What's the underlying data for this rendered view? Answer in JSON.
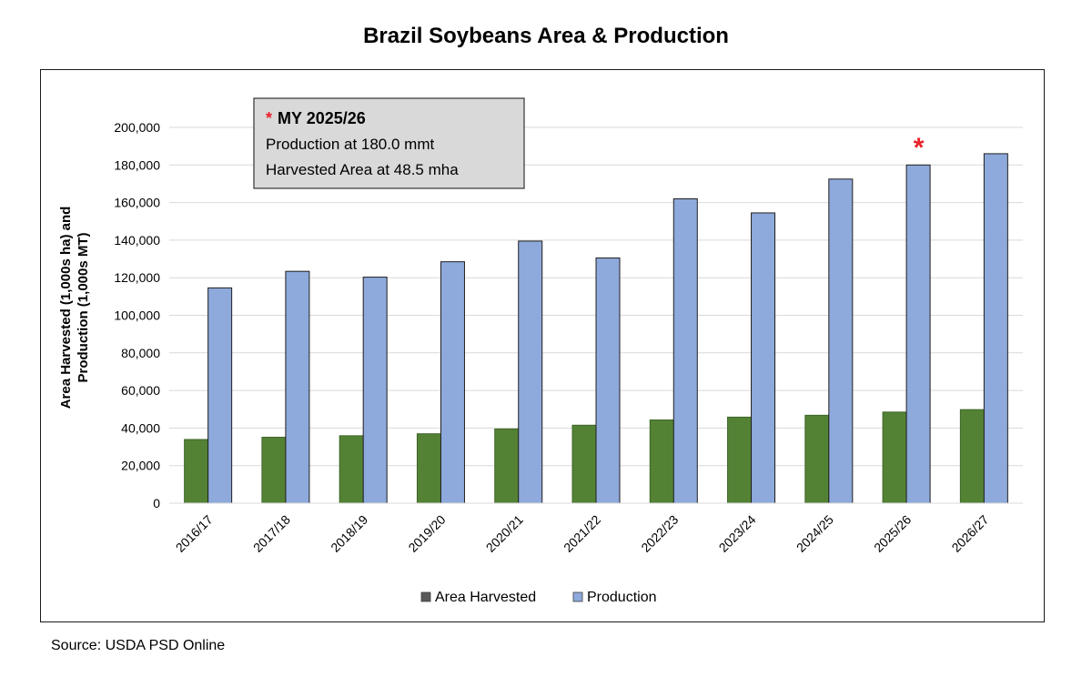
{
  "title": "Brazil Soybeans Area & Production",
  "source": "Source: USDA PSD Online",
  "annotation": {
    "marker": "*",
    "heading": "MY 2025/26",
    "line1": "Production at 180.0 mmt",
    "line2": "Harvested Area at 48.5 mha"
  },
  "colors": {
    "area": "#548235",
    "production": "#8EA9DB",
    "marker": "#e8232a",
    "annotation_bg": "#d9d9d9"
  },
  "chart_data": {
    "type": "bar",
    "title": "Brazil Soybeans Area & Production",
    "ylabel": "Area Harvested (1,000s ha) and Production (1,000s MT)",
    "xlabel": "",
    "ylim": [
      0,
      200000
    ],
    "y_ticks": [
      "0",
      "20,000",
      "40,000",
      "60,000",
      "80,000",
      "100,000",
      "120,000",
      "140,000",
      "160,000",
      "180,000",
      "200,000"
    ],
    "categories": [
      "2016/17",
      "2017/18",
      "2018/19",
      "2019/20",
      "2020/21",
      "2021/22",
      "2022/23",
      "2023/24",
      "2024/25",
      "2025/26",
      "2026/27"
    ],
    "series": [
      {
        "name": "Area Harvested",
        "values": [
          33900,
          35100,
          35900,
          36950,
          39500,
          41500,
          44300,
          45800,
          46800,
          48500,
          49800
        ]
      },
      {
        "name": "Production",
        "values": [
          114600,
          123400,
          120300,
          128500,
          139500,
          130500,
          162000,
          154500,
          172500,
          180000,
          186000
        ]
      }
    ],
    "highlight_category": "2025/26",
    "grid": true,
    "legend": "bottom"
  }
}
